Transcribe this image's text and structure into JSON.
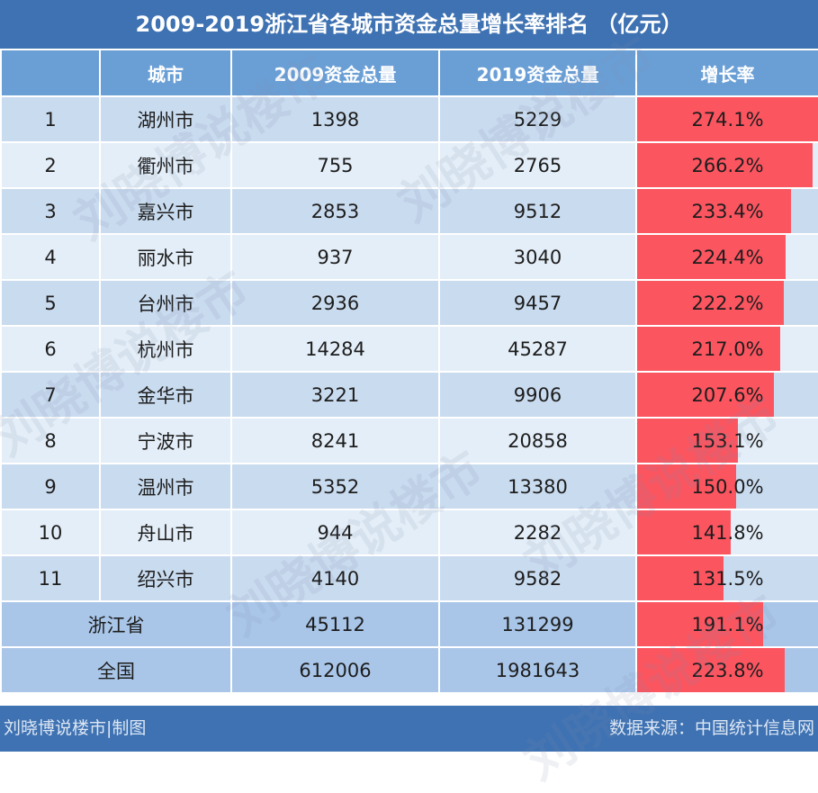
{
  "title": "2009-2019浙江省各城市资金总量增长率排名 （亿元）",
  "headers": [
    "",
    "城市",
    "2009资金总量",
    "2019资金总量",
    "增长率"
  ],
  "rows": [
    {
      "rank": "1",
      "city": "湖州市",
      "v2009": "1398",
      "v2019": "5229",
      "rate": "274.1%",
      "rate_value": 274.1
    },
    {
      "rank": "2",
      "city": "衢州市",
      "v2009": "755",
      "v2019": "2765",
      "rate": "266.2%",
      "rate_value": 266.2
    },
    {
      "rank": "3",
      "city": "嘉兴市",
      "v2009": "2853",
      "v2019": "9512",
      "rate": "233.4%",
      "rate_value": 233.4
    },
    {
      "rank": "4",
      "city": "丽水市",
      "v2009": "937",
      "v2019": "3040",
      "rate": "224.4%",
      "rate_value": 224.4
    },
    {
      "rank": "5",
      "city": "台州市",
      "v2009": "2936",
      "v2019": "9457",
      "rate": "222.2%",
      "rate_value": 222.2
    },
    {
      "rank": "6",
      "city": "杭州市",
      "v2009": "14284",
      "v2019": "45287",
      "rate": "217.0%",
      "rate_value": 217.0
    },
    {
      "rank": "7",
      "city": "金华市",
      "v2009": "3221",
      "v2019": "9906",
      "rate": "207.6%",
      "rate_value": 207.6
    },
    {
      "rank": "8",
      "city": "宁波市",
      "v2009": "8241",
      "v2019": "20858",
      "rate": "153.1%",
      "rate_value": 153.1
    },
    {
      "rank": "9",
      "city": "温州市",
      "v2009": "5352",
      "v2019": "13380",
      "rate": "150.0%",
      "rate_value": 150.0
    },
    {
      "rank": "10",
      "city": "舟山市",
      "v2009": "944",
      "v2019": "2282",
      "rate": "141.8%",
      "rate_value": 141.8
    },
    {
      "rank": "11",
      "city": "绍兴市",
      "v2009": "4140",
      "v2019": "9582",
      "rate": "131.5%",
      "rate_value": 131.5
    }
  ],
  "summary": [
    {
      "label": "浙江省",
      "v2009": "45112",
      "v2019": "131299",
      "rate": "191.1%",
      "rate_value": 191.1
    },
    {
      "label": "全国",
      "v2009": "612006",
      "v2019": "1981643",
      "rate": "223.8%",
      "rate_value": 223.8
    }
  ],
  "rate_bar_max": 274.1,
  "footer": {
    "left": "刘晓博说楼市|制图",
    "right": "数据来源：中国统计信息网"
  },
  "watermark": "刘晓博说楼市",
  "colors": {
    "header": "#3f72b2",
    "header_cell": "#6a9fd6",
    "bar": "#fb5560",
    "row_odd": "#c9dbef",
    "row_even": "#e4eef8"
  }
}
